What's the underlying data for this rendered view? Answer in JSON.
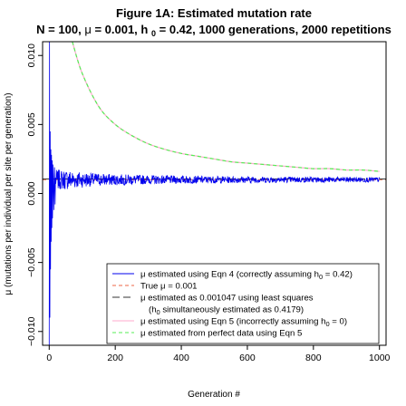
{
  "chart_data": {
    "type": "line",
    "title": "Figure 1A: Estimated mutation rate",
    "subtitle_parts": {
      "n": "N = 100,",
      "mu_sym": "μ",
      "mu_val": " = 0.001,",
      "h": "h",
      "h_sub": "0",
      "h_val": " = 0.42,",
      "rest": " 1000 generations, 2000 repetitions"
    },
    "xlabel": "Generation #",
    "ylabel": "μ (mutations per individual per site per generation)",
    "xlim": [
      -20,
      1020
    ],
    "ylim": [
      -0.011,
      0.011
    ],
    "x_ticks": [
      0,
      200,
      400,
      600,
      800,
      1000
    ],
    "x_tick_labels": [
      "0",
      "200",
      "400",
      "600",
      "800",
      "1000"
    ],
    "y_ticks": [
      -0.01,
      -0.005,
      0.0,
      0.005,
      0.01
    ],
    "y_tick_labels": [
      "−0.010",
      "−0.005",
      "0.000",
      "0.005",
      "0.010"
    ],
    "true_mu": 0.001,
    "least_squares_mu": 0.001047,
    "eqn5_incorrect_curve_points": [
      [
        70,
        0.011
      ],
      [
        100,
        0.0087
      ],
      [
        150,
        0.0063
      ],
      [
        200,
        0.005
      ],
      [
        250,
        0.0042
      ],
      [
        300,
        0.0036
      ],
      [
        350,
        0.0032
      ],
      [
        400,
        0.0029
      ],
      [
        450,
        0.0027
      ],
      [
        500,
        0.0025
      ],
      [
        550,
        0.0023
      ],
      [
        600,
        0.0022
      ],
      [
        650,
        0.0021
      ],
      [
        700,
        0.002
      ],
      [
        750,
        0.0019
      ],
      [
        800,
        0.0018
      ],
      [
        850,
        0.0018
      ],
      [
        900,
        0.0017
      ],
      [
        950,
        0.0017
      ],
      [
        1000,
        0.0016
      ]
    ],
    "eqn4_spike_points": [
      [
        0,
        -0.011
      ],
      [
        1,
        0.011
      ],
      [
        2,
        -0.009
      ],
      [
        3,
        0.0045
      ],
      [
        4,
        -0.0055
      ],
      [
        5,
        0.0032
      ],
      [
        6,
        -0.0035
      ],
      [
        7,
        0.0028
      ],
      [
        8,
        -0.0025
      ],
      [
        9,
        0.0024
      ],
      [
        10,
        -0.0018
      ],
      [
        12,
        0.0021
      ],
      [
        14,
        -0.0012
      ],
      [
        16,
        0.0019
      ],
      [
        18,
        -0.0008
      ]
    ],
    "eqn4_noise_amplitude": 0.0008,
    "legend": [
      {
        "label_parts": [
          "μ estimated using Eqn 4 (correctly assuming h",
          "0",
          " = 0.42)"
        ],
        "color": "#0000ee",
        "dash": "solid"
      },
      {
        "label_parts": [
          "True μ = 0.001"
        ],
        "color": "#ee6644",
        "dash": "dashed"
      },
      {
        "label_parts": [
          "μ estimated as 0.001047 using least squares"
        ],
        "color": "#333333",
        "dash": "longdash"
      },
      {
        "label_parts": [
          "(h",
          "0",
          " simultaneously estimated as 0.4179)"
        ],
        "color": null,
        "dash": "none"
      },
      {
        "label_parts": [
          "μ estimated using Eqn 5 (incorrectly assuming h",
          "0",
          " = 0)"
        ],
        "color": "#ffaacc",
        "dash": "solid"
      },
      {
        "label_parts": [
          "μ estimated from perfect data using Eqn 5"
        ],
        "color": "#55ee55",
        "dash": "dashed"
      }
    ]
  }
}
